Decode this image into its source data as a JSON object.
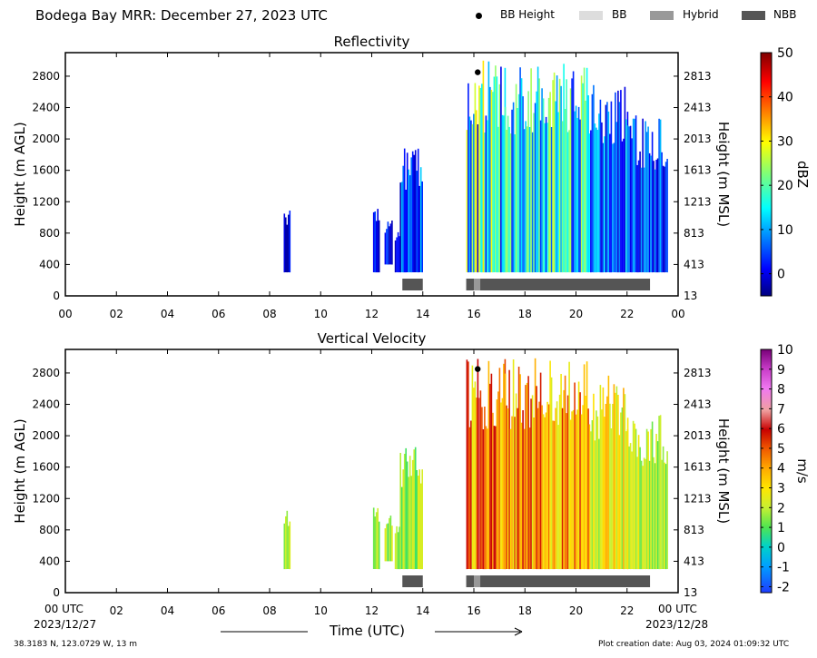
{
  "header": {
    "title": "Bodega Bay MRR:  December 27, 2023 UTC",
    "legend": [
      {
        "label": "BB Height",
        "kind": "dot",
        "color": "#000000"
      },
      {
        "label": "BB",
        "kind": "swatch",
        "color": "#dddddd"
      },
      {
        "label": "Hybrid",
        "kind": "swatch",
        "color": "#999999"
      },
      {
        "label": "NBB",
        "kind": "swatch",
        "color": "#555555"
      }
    ]
  },
  "footer": {
    "location": "38.3183 N, 123.0729 W, 13 m",
    "creation_date": "Plot creation date: Aug 03, 2024 01:09:32 UTC",
    "xlabel": "Time (UTC)",
    "start_label": "00 UTC",
    "start_date": "2023/12/27",
    "end_label": "00 UTC",
    "end_date": "2023/12/28"
  },
  "chart_data": [
    {
      "type": "heatmap",
      "title": "Reflectivity",
      "ylabel": "Height (m AGL)",
      "ylabel_right": "Height (m MSL)",
      "colorbar_label": "dBZ",
      "colorbar_range": [
        -5,
        50
      ],
      "colorbar_ticks": [
        "50",
        "40",
        "30",
        "20",
        "10",
        "0"
      ],
      "colorbar_tick_values": [
        50,
        40,
        30,
        20,
        10,
        0
      ],
      "colormap": "jet",
      "xlim": [
        0,
        24
      ],
      "ylim": [
        0,
        3100
      ],
      "x_ticks": [
        "00",
        "02",
        "04",
        "06",
        "08",
        "10",
        "12",
        "14",
        "16",
        "18",
        "20",
        "22",
        "00"
      ],
      "y_ticks": [
        "0",
        "400",
        "800",
        "1200",
        "1600",
        "2000",
        "2400",
        "2800"
      ],
      "y_tick_values": [
        0,
        400,
        800,
        1200,
        1600,
        2000,
        2400,
        2800
      ],
      "y_ticks_right": [
        "13",
        "413",
        "813",
        "1213",
        "1613",
        "2013",
        "2413",
        "2813"
      ],
      "y_tick_right_values": [
        0,
        400,
        800,
        1200,
        1600,
        2000,
        2400,
        2800
      ],
      "bb_height": [
        {
          "x": 16.15,
          "y": 2850
        }
      ],
      "rain_type_bars": [
        {
          "start": 13.2,
          "end": 14.0,
          "type": "NBB"
        },
        {
          "start": 15.7,
          "end": 16.0,
          "type": "NBB"
        },
        {
          "start": 16.0,
          "end": 16.25,
          "type": "Hybrid"
        },
        {
          "start": 16.25,
          "end": 22.9,
          "type": "NBB"
        }
      ],
      "segments": [
        {
          "x_start": 8.55,
          "x_end": 8.8,
          "y_low": 300,
          "y_high": 1100,
          "v_min": -3,
          "v_max": 4
        },
        {
          "x_start": 12.05,
          "x_end": 12.3,
          "y_low": 300,
          "y_high": 1150,
          "v_min": -3,
          "v_max": 6
        },
        {
          "x_start": 12.5,
          "x_end": 12.8,
          "y_low": 400,
          "y_high": 1000,
          "v_min": -3,
          "v_max": 6
        },
        {
          "x_start": 12.9,
          "x_end": 13.1,
          "y_low": 300,
          "y_high": 900,
          "v_min": -2,
          "v_max": 6
        },
        {
          "x_start": 13.1,
          "x_end": 14.0,
          "y_low": 300,
          "y_high": 1900,
          "v_min": -3,
          "v_max": 14
        },
        {
          "x_start": 15.7,
          "x_end": 17.2,
          "y_low": 300,
          "y_high": 3000,
          "v_min": 0,
          "v_max": 32
        },
        {
          "x_start": 17.2,
          "x_end": 20.5,
          "y_low": 300,
          "y_high": 3000,
          "v_min": 3,
          "v_max": 26
        },
        {
          "x_start": 20.5,
          "x_end": 22.0,
          "y_low": 300,
          "y_high": 2800,
          "v_min": -1,
          "v_max": 18
        },
        {
          "x_start": 22.0,
          "x_end": 23.6,
          "y_low": 300,
          "y_high": 2300,
          "v_min": -3,
          "v_max": 12
        }
      ]
    },
    {
      "type": "heatmap",
      "title": "Vertical Velocity",
      "ylabel": "Height (m AGL)",
      "ylabel_right": "Height (m MSL)",
      "colorbar_label": "m/s",
      "colorbar_range": [
        -2.3,
        10
      ],
      "colorbar_ticks": [
        "10",
        "9",
        "8",
        "7",
        "6",
        "5",
        "4",
        "3",
        "2",
        "1",
        "0",
        "-1",
        "-2"
      ],
      "colorbar_tick_values": [
        10,
        9,
        8,
        7,
        6,
        5,
        4,
        3,
        2,
        1,
        0,
        -1,
        -2
      ],
      "colormap": "velocity",
      "xlim": [
        0,
        24
      ],
      "ylim": [
        0,
        3100
      ],
      "x_ticks": [
        "",
        "02",
        "04",
        "06",
        "08",
        "10",
        "12",
        "14",
        "16",
        "18",
        "20",
        "22",
        ""
      ],
      "y_ticks": [
        "0",
        "400",
        "800",
        "1200",
        "1600",
        "2000",
        "2400",
        "2800"
      ],
      "y_tick_values": [
        0,
        400,
        800,
        1200,
        1600,
        2000,
        2400,
        2800
      ],
      "y_ticks_right": [
        "13",
        "413",
        "813",
        "1213",
        "1613",
        "2013",
        "2413",
        "2813"
      ],
      "y_tick_right_values": [
        0,
        400,
        800,
        1200,
        1600,
        2000,
        2400,
        2800
      ],
      "bb_height": [
        {
          "x": 16.15,
          "y": 2850
        }
      ],
      "rain_type_bars": [
        {
          "start": 13.2,
          "end": 14.0,
          "type": "NBB"
        },
        {
          "start": 15.7,
          "end": 16.0,
          "type": "NBB"
        },
        {
          "start": 16.0,
          "end": 16.25,
          "type": "Hybrid"
        },
        {
          "start": 16.25,
          "end": 22.9,
          "type": "NBB"
        }
      ],
      "segments": [
        {
          "x_start": 8.55,
          "x_end": 8.8,
          "y_low": 300,
          "y_high": 1100,
          "v_min": 1.2,
          "v_max": 2.5
        },
        {
          "x_start": 12.05,
          "x_end": 12.3,
          "y_low": 300,
          "y_high": 1200,
          "v_min": 0.5,
          "v_max": 2.5
        },
        {
          "x_start": 12.5,
          "x_end": 12.8,
          "y_low": 400,
          "y_high": 1000,
          "v_min": 0.5,
          "v_max": 2.5
        },
        {
          "x_start": 12.9,
          "x_end": 13.1,
          "y_low": 300,
          "y_high": 900,
          "v_min": 0.5,
          "v_max": 2.2
        },
        {
          "x_start": 13.1,
          "x_end": 14.0,
          "y_low": 300,
          "y_high": 1900,
          "v_min": 0.8,
          "v_max": 2.6
        },
        {
          "x_start": 15.7,
          "x_end": 17.2,
          "y_low": 300,
          "y_high": 3000,
          "v_min": 2.5,
          "v_max": 6.5
        },
        {
          "x_start": 17.2,
          "x_end": 20.5,
          "y_low": 300,
          "y_high": 3000,
          "v_min": 2.3,
          "v_max": 6.0
        },
        {
          "x_start": 20.5,
          "x_end": 22.0,
          "y_low": 300,
          "y_high": 2800,
          "v_min": 1.3,
          "v_max": 4.0
        },
        {
          "x_start": 22.0,
          "x_end": 23.6,
          "y_low": 300,
          "y_high": 2300,
          "v_min": 0.8,
          "v_max": 3.0
        }
      ]
    }
  ]
}
